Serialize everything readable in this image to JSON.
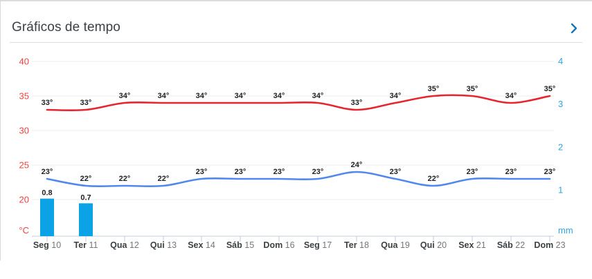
{
  "header": {
    "title": "Gráficos de tempo"
  },
  "chart_data": {
    "type": "line",
    "title": "Gráficos de tempo",
    "categories": [
      "Seg 10",
      "Ter 11",
      "Qua 12",
      "Qui 13",
      "Sex 14",
      "Sáb 15",
      "Dom 16",
      "Seg 17",
      "Ter 18",
      "Qua 19",
      "Qui 20",
      "Sex 21",
      "Sáb 22",
      "Dom 23"
    ],
    "series": [
      {
        "name": "temperatura-maxima",
        "type": "line",
        "unit": "°",
        "color": "#e6252e",
        "values": [
          33,
          33,
          34,
          34,
          34,
          34,
          34,
          34,
          33,
          34,
          35,
          35,
          34,
          35
        ]
      },
      {
        "name": "temperatura-minima",
        "type": "line",
        "unit": "°",
        "color": "#5288ee",
        "values": [
          23,
          22,
          22,
          22,
          23,
          23,
          23,
          23,
          24,
          23,
          22,
          23,
          23,
          23
        ]
      },
      {
        "name": "precipitacao",
        "type": "bar",
        "unit": "mm",
        "color": "#0ca2e6",
        "values": [
          0.8,
          0.7,
          null,
          null,
          null,
          null,
          null,
          null,
          null,
          null,
          null,
          null,
          null,
          null
        ]
      }
    ],
    "left_axis": {
      "label": "°C",
      "ticks": [
        40,
        35,
        30,
        25,
        20
      ],
      "range": [
        20,
        40
      ],
      "color": "#f24040"
    },
    "right_axis": {
      "label": "mm",
      "ticks": [
        4,
        3,
        2,
        1
      ],
      "range": [
        0,
        4
      ],
      "color": "#2ba7e2"
    },
    "grid": true,
    "legend": false
  },
  "colors": {
    "grid_line": "#ececec",
    "axis_line": "#c3ccd8",
    "data_label": "#202124",
    "day_name": "#3c4043",
    "day_number": "#72777b",
    "chevron": "#1273b6",
    "divider": "#dddddd"
  }
}
